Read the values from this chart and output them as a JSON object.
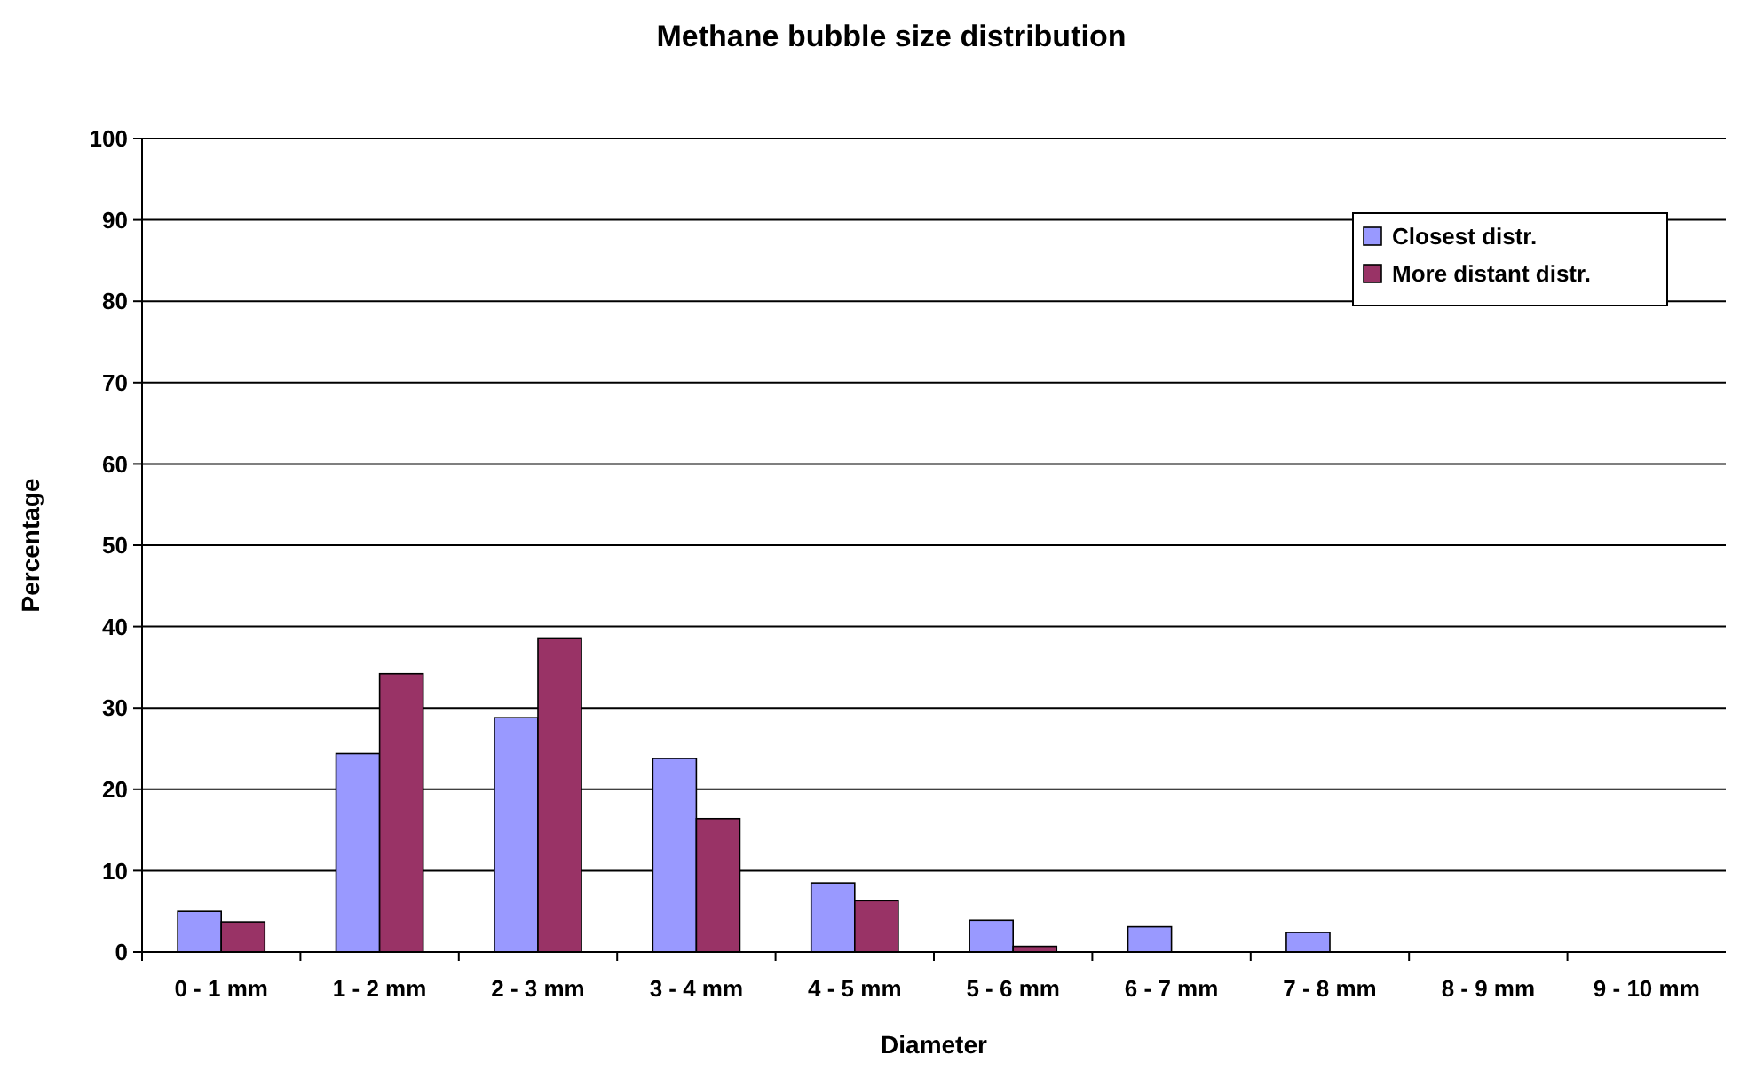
{
  "chart_data": {
    "type": "bar",
    "title": "Methane bubble size distribution",
    "xlabel": "Diameter",
    "ylabel": "Percentage",
    "categories": [
      "0 - 1 mm",
      "1 - 2 mm",
      "2 - 3 mm",
      "3 - 4 mm",
      "4 - 5 mm",
      "5 - 6 mm",
      "6 - 7 mm",
      "7 - 8 mm",
      "8 - 9 mm",
      "9 - 10 mm"
    ],
    "series": [
      {
        "name": "Closest distr.",
        "color": "#9999ff",
        "values": [
          5.0,
          24.4,
          28.8,
          23.8,
          8.5,
          3.9,
          3.1,
          2.4,
          0,
          0
        ]
      },
      {
        "name": "More distant distr.",
        "color": "#993366",
        "values": [
          3.7,
          34.2,
          38.6,
          16.4,
          6.3,
          0.7,
          0,
          0,
          0,
          0
        ]
      }
    ],
    "ylim": [
      0,
      100
    ],
    "yticks": [
      0,
      10,
      20,
      30,
      40,
      50,
      60,
      70,
      80,
      90,
      100
    ],
    "grid": "y",
    "legend": "top right"
  }
}
